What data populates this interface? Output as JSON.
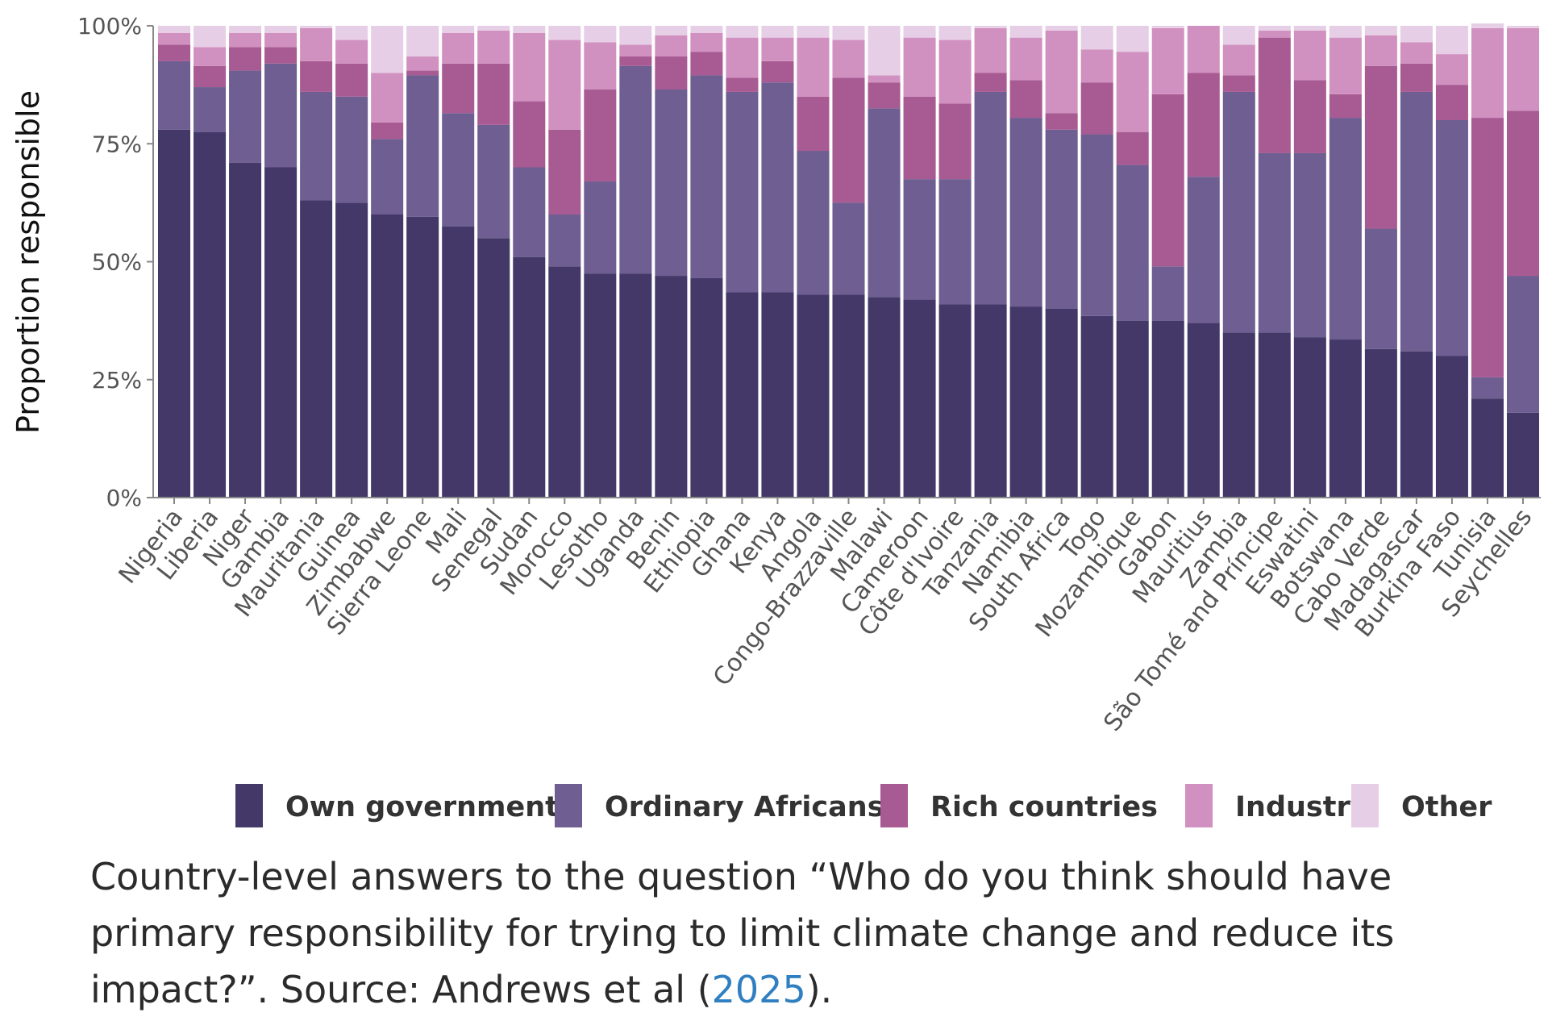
{
  "chart_data": {
    "type": "bar",
    "stacked": true,
    "ylabel": "Proportion responsible",
    "xlabel": "",
    "ylim": [
      0,
      100
    ],
    "yticks": [
      "0%",
      "25%",
      "50%",
      "75%",
      "100%"
    ],
    "grid": false,
    "legend_position": "bottom",
    "categories": [
      "Nigeria",
      "Liberia",
      "Niger",
      "Gambia",
      "Mauritania",
      "Guinea",
      "Zimbabwe",
      "Sierra Leone",
      "Mali",
      "Senegal",
      "Sudan",
      "Morocco",
      "Lesotho",
      "Uganda",
      "Benin",
      "Ethiopia",
      "Ghana",
      "Kenya",
      "Angola",
      "Congo-Brazzaville",
      "Malawi",
      "Cameroon",
      "Côte d'Ivoire",
      "Tanzania",
      "Namibia",
      "South Africa",
      "Togo",
      "Mozambique",
      "Gabon",
      "Mauritius",
      "Zambia",
      "São Tomé and Príncipe",
      "Eswatini",
      "Botswana",
      "Cabo Verde",
      "Madagascar",
      "Burkina Faso",
      "Tunisia",
      "Seychelles"
    ],
    "series": [
      {
        "name": "Own government",
        "color": "#433868",
        "values": [
          78,
          77.5,
          71,
          70,
          63,
          62.5,
          60,
          59.5,
          57.5,
          55,
          51,
          49,
          47.5,
          47.5,
          47,
          46.5,
          43.5,
          43.5,
          43,
          43,
          42.5,
          42,
          41,
          41,
          40.5,
          40,
          38.5,
          37.5,
          37.5,
          37,
          35,
          35,
          34,
          33.5,
          31.5,
          31,
          30,
          21,
          18
        ]
      },
      {
        "name": "Ordinary Africans",
        "color": "#6e5e91",
        "values": [
          14.5,
          9.5,
          19.5,
          22,
          23,
          22.5,
          16,
          30,
          24,
          24,
          19,
          11,
          19.5,
          44,
          39.5,
          43,
          42.5,
          44.5,
          30.5,
          19.5,
          40,
          25.5,
          26.5,
          45,
          40,
          38,
          38.5,
          33,
          11.5,
          31,
          51,
          38,
          39,
          47,
          25.5,
          55,
          50,
          4.5,
          29
        ]
      },
      {
        "name": "Rich countries",
        "color": "#a85a92",
        "values": [
          3.5,
          4.5,
          5,
          3.5,
          6.5,
          7,
          3.5,
          1,
          10.5,
          13,
          14,
          18,
          19.5,
          2,
          7,
          5,
          3,
          4.5,
          11.5,
          26.5,
          5.5,
          17.5,
          16,
          4,
          8,
          3.5,
          11,
          7,
          36.5,
          22,
          3.5,
          24.5,
          15.5,
          5,
          34.5,
          6,
          7.5,
          55,
          35
        ]
      },
      {
        "name": "Industry",
        "color": "#d191c0",
        "values": [
          2.5,
          4,
          3,
          3,
          7,
          5,
          10.5,
          3,
          6.5,
          7,
          14.5,
          19,
          10,
          2.5,
          4.5,
          4,
          8.5,
          5,
          12.5,
          8,
          1.5,
          12.5,
          13.5,
          9.5,
          9,
          17.5,
          7,
          17,
          14,
          10,
          6.5,
          1.5,
          10.5,
          12,
          6.5,
          4.5,
          6.5,
          19,
          17.5
        ]
      },
      {
        "name": "Other",
        "color": "#e6cfe6",
        "values": [
          1.5,
          4.5,
          1.5,
          1.5,
          0.5,
          3,
          10,
          6.5,
          1.5,
          1,
          1.5,
          3,
          3.5,
          4,
          2,
          1.5,
          2.5,
          2.5,
          2.5,
          3,
          10.5,
          2.5,
          3,
          0.5,
          2.5,
          1,
          5,
          5.5,
          0.5,
          0,
          4,
          1,
          1,
          2.5,
          2,
          3.5,
          6,
          1,
          0.5
        ]
      }
    ]
  },
  "caption": {
    "text": "Country-level answers to the question “Who do you think should have primary responsibility for trying to limit climate change and reduce its impact?”. Source: Andrews et al (",
    "link": "2025",
    "end": ")."
  }
}
